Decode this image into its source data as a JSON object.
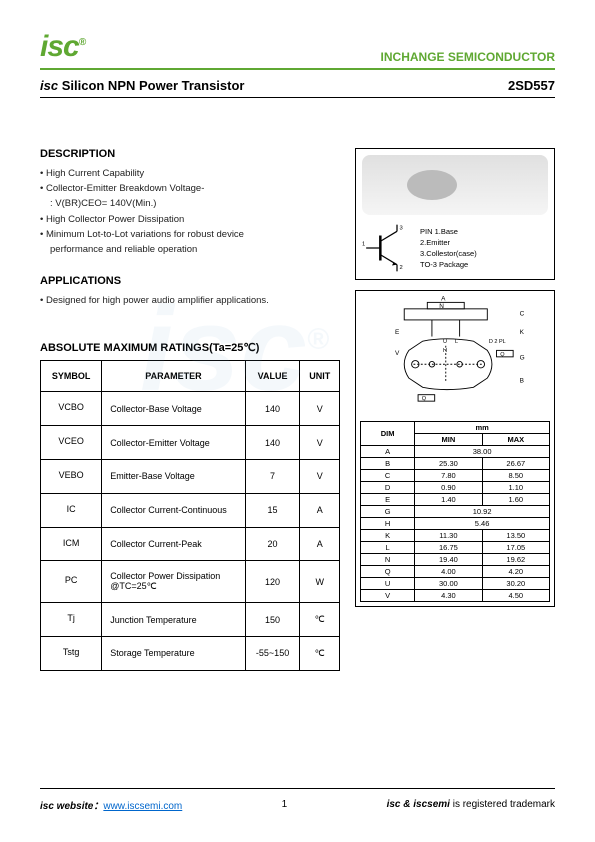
{
  "header": {
    "logo": "isc",
    "brand": "INCHANGE SEMICONDUCTOR"
  },
  "title": {
    "isc": "isc",
    "product": "Silicon NPN Power Transistor",
    "partno": "2SD557"
  },
  "description": {
    "heading": "DESCRIPTION",
    "items": [
      "High Current Capability",
      "Collector-Emitter Breakdown Voltage-",
      "V(BR)CEO= 140V(Min.)",
      "High Collector Power Dissipation",
      "Minimum Lot-to-Lot variations for robust device",
      "performance and reliable operation"
    ]
  },
  "applications": {
    "heading": "APPLICATIONS",
    "item": "Designed for high power audio amplifier applications."
  },
  "ratings": {
    "heading": "ABSOLUTE MAXIMUM RATINGS(Ta=25℃)",
    "cols": [
      "SYMBOL",
      "PARAMETER",
      "VALUE",
      "UNIT"
    ],
    "rows": [
      {
        "sym": "VCBO",
        "param": "Collector-Base Voltage",
        "val": "140",
        "unit": "V"
      },
      {
        "sym": "VCEO",
        "param": "Collector-Emitter Voltage",
        "val": "140",
        "unit": "V"
      },
      {
        "sym": "VEBO",
        "param": "Emitter-Base Voltage",
        "val": "7",
        "unit": "V"
      },
      {
        "sym": "IC",
        "param": "Collector Current-Continuous",
        "val": "15",
        "unit": "A"
      },
      {
        "sym": "ICM",
        "param": "Collector Current-Peak",
        "val": "20",
        "unit": "A"
      },
      {
        "sym": "PC",
        "param": "Collector Power Dissipation @TC=25℃",
        "val": "120",
        "unit": "W"
      },
      {
        "sym": "Tj",
        "param": "Junction Temperature",
        "val": "150",
        "unit": "℃"
      },
      {
        "sym": "Tstg",
        "param": "Storage Temperature",
        "val": "-55~150",
        "unit": "℃"
      }
    ]
  },
  "package": {
    "pin_label": "PIN",
    "pins": [
      "1.Base",
      "2.Emitter",
      "3.Collestor(case)"
    ],
    "pkg": "TO-3  Package"
  },
  "dimensions": {
    "unit": "mm",
    "cols": [
      "DIM",
      "MIN",
      "MAX"
    ],
    "rows": [
      {
        "d": "A",
        "min": "38.00",
        "max": ""
      },
      {
        "d": "B",
        "min": "25.30",
        "max": "26.67"
      },
      {
        "d": "C",
        "min": "7.80",
        "max": "8.50"
      },
      {
        "d": "D",
        "min": "0.90",
        "max": "1.10"
      },
      {
        "d": "E",
        "min": "1.40",
        "max": "1.60"
      },
      {
        "d": "G",
        "min": "10.92",
        "max": ""
      },
      {
        "d": "H",
        "min": "5.46",
        "max": ""
      },
      {
        "d": "K",
        "min": "11.30",
        "max": "13.50"
      },
      {
        "d": "L",
        "min": "16.75",
        "max": "17.05"
      },
      {
        "d": "N",
        "min": "19.40",
        "max": "19.62"
      },
      {
        "d": "Q",
        "min": "4.00",
        "max": "4.20"
      },
      {
        "d": "U",
        "min": "30.00",
        "max": "30.20"
      },
      {
        "d": "V",
        "min": "4.30",
        "max": "4.50"
      }
    ]
  },
  "footer": {
    "website_lbl": "isc website：",
    "url": "www.iscsemi.com",
    "page": "1",
    "trademark_lbl": "isc & iscsemi",
    "trademark_txt": " is registered trademark"
  }
}
